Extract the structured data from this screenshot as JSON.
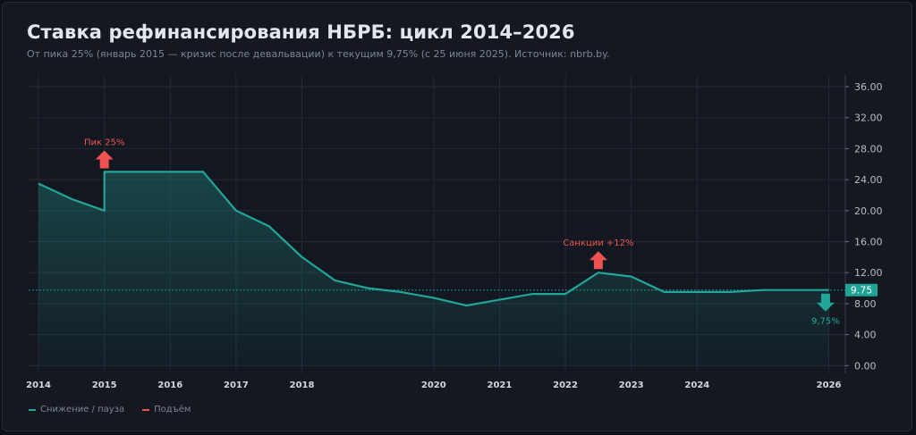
{
  "header": {
    "title": "Ставка рефинансирования НБРБ: цикл 2014–2026",
    "subtitle": "От пика 25% (январь 2015 — кризис после девальвации) к текущим 9,75% (с 25 июня 2025). Источник: nbrb.by."
  },
  "legend": [
    {
      "label": "Снижение / пауза",
      "color": "#22a699"
    },
    {
      "label": "Подъём",
      "color": "#ef5350"
    }
  ],
  "chart_data": {
    "type": "area",
    "title": "Ставка рефинансирования НБРБ: цикл 2014–2026",
    "xlabel": "",
    "ylabel": "",
    "xlim": [
      2013.85,
      2026.25
    ],
    "ylim": [
      -1,
      37.5
    ],
    "x_ticks": [
      2014,
      2015,
      2016,
      2017,
      2018,
      2020,
      2021,
      2022,
      2023,
      2024,
      2026
    ],
    "y_ticks": [
      0,
      4,
      8,
      12,
      16,
      20,
      24,
      28,
      32,
      36
    ],
    "y_tick_labels": [
      "0.00",
      "4.00",
      "8.00",
      "12.00",
      "16.00",
      "20.00",
      "24.00",
      "28.00",
      "32.00",
      "36.00"
    ],
    "grid": true,
    "series": [
      {
        "name": "",
        "color": "#22a699",
        "x": [
          2014.0,
          2014.5,
          2015.0,
          2015.0,
          2016.0,
          2016.5,
          2017.0,
          2017.5,
          2018.0,
          2018.5,
          2019.0,
          2019.5,
          2020.0,
          2020.5,
          2021.0,
          2021.5,
          2022.0,
          2022.5,
          2023.0,
          2023.5,
          2024.0,
          2024.5,
          2025.0,
          2025.5,
          2026.0
        ],
        "values": [
          23.5,
          21.5,
          20.0,
          25.0,
          25.0,
          25.0,
          20.0,
          18.0,
          14.0,
          11.0,
          10.0,
          9.5,
          8.75,
          7.75,
          8.5,
          9.25,
          9.25,
          12.0,
          11.5,
          9.5,
          9.5,
          9.5,
          9.75,
          9.75,
          9.75
        ]
      }
    ],
    "current_value": {
      "value": 9.75,
      "label": "9.75"
    },
    "annotations": [
      {
        "text": "Пик 25%",
        "x": 2015.0,
        "value": 25.0,
        "direction": "up",
        "color": "#ef5350"
      },
      {
        "text": "Санкции +12%",
        "x": 2022.5,
        "value": 12.0,
        "direction": "up",
        "color": "#ef5350"
      },
      {
        "text": "9,75%",
        "x": 2025.0,
        "value": 9.75,
        "direction": "down",
        "color": "#22a699"
      }
    ]
  }
}
